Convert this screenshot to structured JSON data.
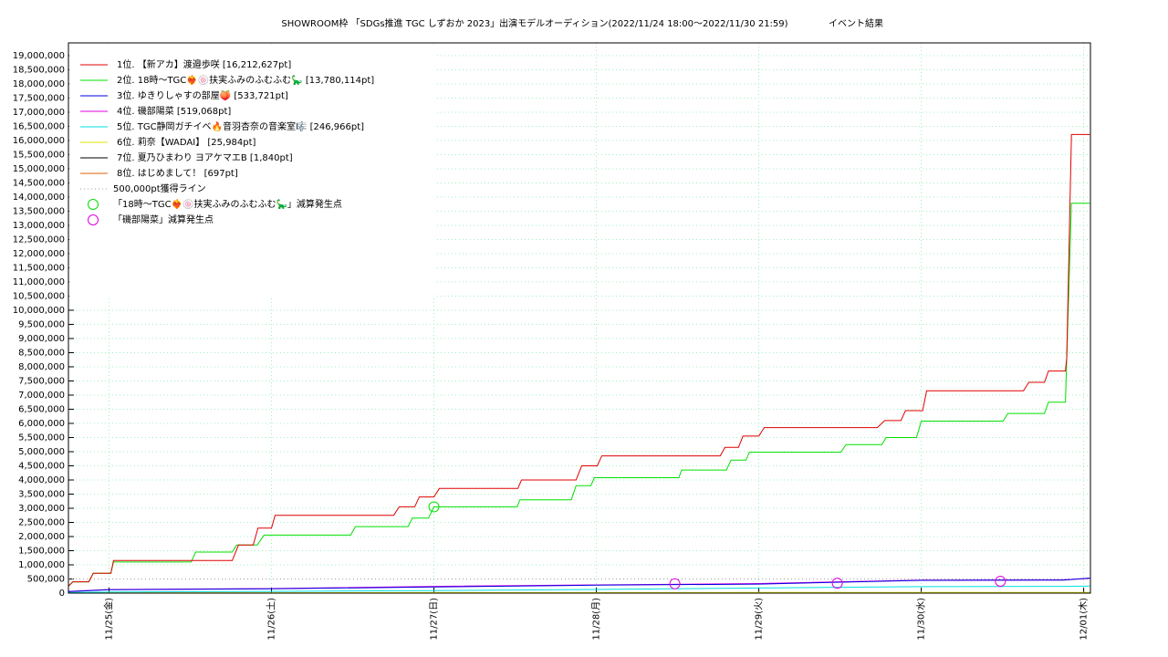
{
  "chart_data": {
    "type": "line",
    "title": "SHOWROOM枠 「SDGs推進 TGC しずおか 2023」出演モデルオーディション(2022/11/24 18:00～2022/11/30 21:59)",
    "subtitle": "イベント結果",
    "xlim": [
      "11/24 18:00",
      "12/01 01:00"
    ],
    "xticks": [
      {
        "value": "11/25 00:00",
        "label": "11/25(金)"
      },
      {
        "value": "11/26 00:00",
        "label": "11/26(土)"
      },
      {
        "value": "11/27 00:00",
        "label": "11/27(日)"
      },
      {
        "value": "11/28 00:00",
        "label": "11/28(月)"
      },
      {
        "value": "11/29 00:00",
        "label": "11/29(火)"
      },
      {
        "value": "11/30 00:00",
        "label": "11/30(水)"
      },
      {
        "value": "12/01 00:00",
        "label": "12/01(木)"
      }
    ],
    "ylim": [
      0,
      19450000
    ],
    "yticks": [
      0,
      {
        "value": 500000,
        "label": "500,000"
      },
      {
        "value": 1000000,
        "label": "1,000,000"
      },
      {
        "value": 1500000,
        "label": "1,500,000"
      },
      {
        "value": 2000000,
        "label": "2,000,000"
      },
      {
        "value": 2500000,
        "label": "2,500,000"
      },
      {
        "value": 3000000,
        "label": "3,000,000"
      },
      {
        "value": 3500000,
        "label": "3,500,000"
      },
      {
        "value": 4000000,
        "label": "4,000,000"
      },
      {
        "value": 4500000,
        "label": "4,500,000"
      },
      {
        "value": 5000000,
        "label": "5,000,000"
      },
      {
        "value": 5500000,
        "label": "5,500,000"
      },
      {
        "value": 6000000,
        "label": "6,000,000"
      },
      {
        "value": 6500000,
        "label": "6,500,000"
      },
      {
        "value": 7000000,
        "label": "7,000,000"
      },
      {
        "value": 7500000,
        "label": "7,500,000"
      },
      {
        "value": 8000000,
        "label": "8,000,000"
      },
      {
        "value": 8500000,
        "label": "8,500,000"
      },
      {
        "value": 9000000,
        "label": "9,000,000"
      },
      {
        "value": 9500000,
        "label": "9,500,000"
      },
      {
        "value": 10000000,
        "label": "10,000,000"
      },
      {
        "value": 10500000,
        "label": "10,500,000"
      },
      {
        "value": 11000000,
        "label": "11,000,000"
      },
      {
        "value": 11500000,
        "label": "11,500,000"
      },
      {
        "value": 12000000,
        "label": "12,000,000"
      },
      {
        "value": 12500000,
        "label": "12,500,000"
      },
      {
        "value": 13000000,
        "label": "13,000,000"
      },
      {
        "value": 13500000,
        "label": "13,500,000"
      },
      {
        "value": 14000000,
        "label": "14,000,000"
      },
      {
        "value": 14500000,
        "label": "14,500,000"
      },
      {
        "value": 15000000,
        "label": "15,000,000"
      },
      {
        "value": 15500000,
        "label": "15,500,000"
      },
      {
        "value": 16000000,
        "label": "16,000,000"
      },
      {
        "value": 16500000,
        "label": "16,500,000"
      },
      {
        "value": 17000000,
        "label": "17,000,000"
      },
      {
        "value": 17500000,
        "label": "17,500,000"
      },
      {
        "value": 18000000,
        "label": "18,000,000"
      },
      {
        "value": 18500000,
        "label": "18,500,000"
      },
      {
        "value": 19000000,
        "label": "19,000,000"
      }
    ],
    "grid": true,
    "legend": "upper left",
    "series": [
      {
        "name": "1位. 【新アカ】渡邉歩咲 [16,212,627pt]",
        "color": "#e00000",
        "x": [
          "11/24 18:00",
          "11/24 18:40",
          "11/24 21:00",
          "11/24 21:40",
          "11/25 00:16",
          "11/25 00:40",
          "11/25 18:12",
          "11/25 19:08",
          "11/25 21:18",
          "11/25 22:00",
          "11/26 00:00",
          "11/26 00:32",
          "11/26 18:04",
          "11/26 18:52",
          "11/26 21:10",
          "11/26 21:50",
          "11/27 00:00",
          "11/27 00:48",
          "11/27 12:24",
          "11/27 12:56",
          "11/27 21:00",
          "11/27 21:50",
          "11/28 00:08",
          "11/28 00:48",
          "11/28 18:18",
          "11/28 19:00",
          "11/28 21:00",
          "11/28 21:40",
          "11/29 00:00",
          "11/29 00:48",
          "11/29 17:30",
          "11/29 18:36",
          "11/29 21:00",
          "11/29 21:40",
          "11/30 00:12",
          "11/30 00:48",
          "11/30 15:06",
          "11/30 15:54",
          "11/30 18:12",
          "11/30 18:48",
          "11/30 21:18",
          "11/30 21:30",
          "11/30 22:12",
          "12/01 00:54"
        ],
        "values": [
          250000,
          400000,
          400000,
          700000,
          700000,
          1150000,
          1150000,
          1700000,
          1700000,
          2300000,
          2300000,
          2750000,
          2750000,
          3050000,
          3050000,
          3400000,
          3400000,
          3700000,
          3700000,
          4000000,
          4000000,
          4500000,
          4500000,
          4850000,
          4850000,
          5150000,
          5150000,
          5550000,
          5550000,
          5850000,
          5850000,
          6100000,
          6100000,
          6450000,
          6450000,
          7150000,
          7150000,
          7450000,
          7450000,
          7850000,
          7850000,
          8300000,
          16212627,
          16212627
        ]
      },
      {
        "name": "2位. 18時〜TGC❤️‍🔥🍥扶実ふみのふむふむ🦕 [13,780,114pt]",
        "color": "#00e000",
        "x": [
          "11/24 18:00",
          "11/24 18:40",
          "11/24 21:00",
          "11/24 21:40",
          "11/25 00:16",
          "11/25 00:40",
          "11/25 12:08",
          "11/25 12:48",
          "11/25 18:12",
          "11/25 18:52",
          "11/25 21:54",
          "11/25 22:54",
          "11/26 11:42",
          "11/26 12:24",
          "11/26 20:12",
          "11/26 20:48",
          "11/26 23:12",
          "11/27 00:00",
          "11/27 12:18",
          "11/27 12:42",
          "11/27 20:18",
          "11/27 21:00",
          "11/27 23:12",
          "11/27 23:42",
          "11/28 12:12",
          "11/28 12:36",
          "11/28 19:12",
          "11/28 19:54",
          "11/28 22:06",
          "11/28 22:36",
          "11/29 12:06",
          "11/29 12:54",
          "11/29 18:12",
          "11/29 18:48",
          "11/29 23:18",
          "11/30 00:00",
          "11/30 12:06",
          "11/30 12:48",
          "11/30 18:12",
          "11/30 18:48",
          "11/30 21:18",
          "11/30 22:12",
          "12/01 00:54"
        ],
        "values": [
          250000,
          400000,
          400000,
          700000,
          700000,
          1100000,
          1100000,
          1450000,
          1450000,
          1700000,
          1700000,
          2050000,
          2050000,
          2350000,
          2350000,
          2650000,
          2650000,
          3050000,
          3050000,
          3300000,
          3300000,
          3800000,
          3800000,
          4080000,
          4080000,
          4350000,
          4350000,
          4700000,
          4700000,
          4980000,
          4980000,
          5250000,
          5250000,
          5500000,
          5500000,
          6080000,
          6080000,
          6350000,
          6350000,
          6750000,
          6750000,
          13780114,
          13780114
        ]
      },
      {
        "name": "3位. ゆきりしゃすの部屋🍑 [533,721pt]",
        "color": "#0000e0",
        "x": [
          "11/24 18:00",
          "11/25 00:00",
          "11/26 00:00",
          "11/27 00:00",
          "11/28 00:00",
          "11/29 00:00",
          "11/30 00:00",
          "11/30 21:00",
          "12/01 00:54"
        ],
        "values": [
          50000,
          120000,
          150000,
          220000,
          280000,
          320000,
          450000,
          460000,
          533721
        ]
      },
      {
        "name": "4位. 磯部陽菜 [519,068pt]",
        "color": "#e000e0",
        "x": [
          "11/24 18:00",
          "11/25 00:00",
          "11/26 00:00",
          "11/27 00:00",
          "11/28 00:00",
          "11/29 00:00",
          "11/30 00:00",
          "11/30 21:00",
          "12/01 00:54"
        ],
        "values": [
          60000,
          130000,
          160000,
          240000,
          290000,
          340000,
          460000,
          470000,
          519068
        ]
      },
      {
        "name": "5位. TGC静岡ガチイベ🔥音羽杏奈の音楽室🎼 [246,966pt]",
        "color": "#00e0e0",
        "x": [
          "11/24 18:00",
          "11/25 00:00",
          "11/26 00:00",
          "11/27 00:00",
          "11/28 00:00",
          "11/29 00:00",
          "11/30 00:00",
          "11/30 21:00",
          "12/01 00:54"
        ],
        "values": [
          20000,
          40000,
          60000,
          90000,
          130000,
          180000,
          230000,
          240000,
          246966
        ]
      },
      {
        "name": "6位. 莉奈【WADAI】 [25,984pt]",
        "color": "#e0e000",
        "x": [
          "11/24 18:00",
          "11/25 00:00",
          "11/26 00:00",
          "11/27 00:00",
          "11/28 00:00",
          "11/29 00:00",
          "11/30 00:00",
          "11/30 21:00",
          "12/01 00:54"
        ],
        "values": [
          5000,
          10000,
          14000,
          18000,
          20000,
          22000,
          25000,
          25500,
          25984
        ]
      },
      {
        "name": "7位. 夏乃ひまわり ヨアケマエB [1,840pt]",
        "color": "#000000",
        "x": [
          "11/24 18:00",
          "11/25 00:00",
          "11/26 00:00",
          "11/27 00:00",
          "11/28 00:00",
          "11/29 00:00",
          "11/30 00:00",
          "11/30 21:00",
          "12/01 00:54"
        ],
        "values": [
          0,
          300,
          600,
          900,
          1200,
          1500,
          1800,
          1830,
          1840
        ]
      },
      {
        "name": "8位. はじめまして！ [697pt]",
        "color": "#e06000",
        "x": [
          "11/24 18:00",
          "11/25 00:00",
          "11/26 00:00",
          "11/27 00:00",
          "11/28 00:00",
          "11/29 00:00",
          "11/30 00:00",
          "11/30 21:00",
          "12/01 00:54"
        ],
        "values": [
          0,
          100,
          200,
          300,
          400,
          500,
          690,
          695,
          697
        ]
      }
    ],
    "reference_lines": [
      {
        "name": "500,000pt獲得ライン",
        "value": 500000,
        "color": "#a0a0a0"
      }
    ],
    "markers": [
      {
        "name": "「18時〜TGC❤️‍🔥🍥扶実ふみのふむふむ🦕」減算発生点",
        "color": "#00e000",
        "points": [
          {
            "x": "11/27 00:00",
            "y": 3050000
          }
        ]
      },
      {
        "name": "「磯部陽菜」減算発生点",
        "color": "#e000e0",
        "points": [
          {
            "x": "11/28 11:36",
            "y": 330000
          },
          {
            "x": "11/29 11:36",
            "y": 350000
          },
          {
            "x": "11/30 11:42",
            "y": 420000
          }
        ]
      }
    ]
  }
}
